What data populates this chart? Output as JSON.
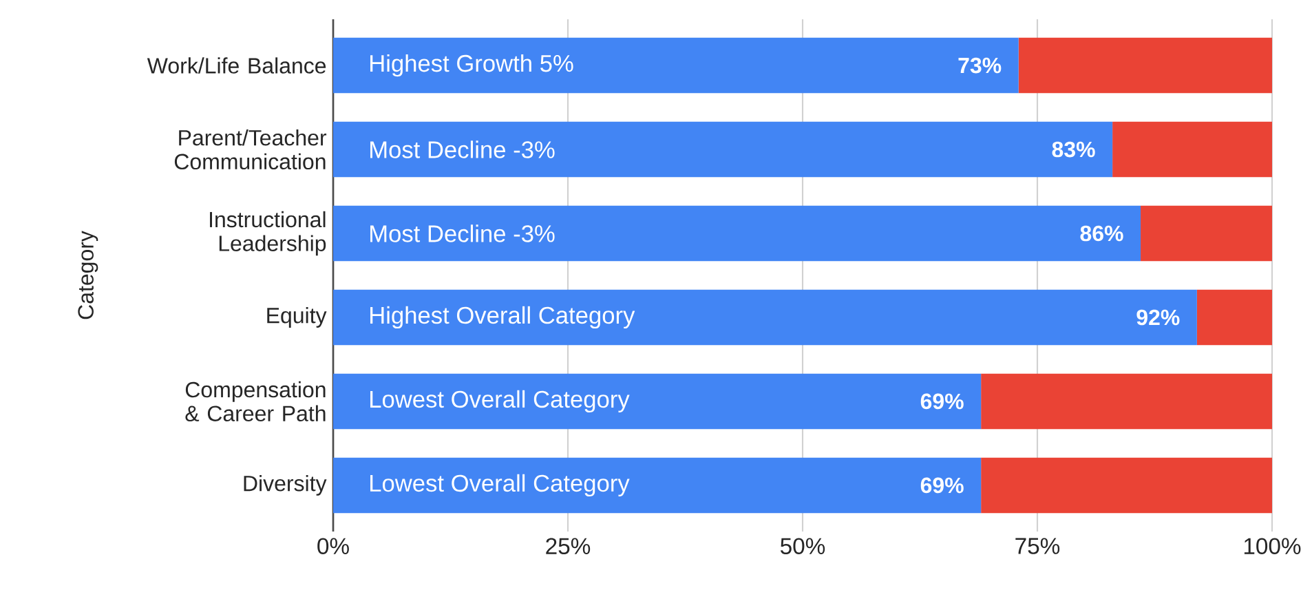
{
  "chart_data": {
    "type": "bar",
    "orientation": "horizontal",
    "stacked": true,
    "grid": "x",
    "ylabel": "Category",
    "categories": [
      "Work/Life Balance",
      "Parent/Teacher Communication",
      "Instructional Leadership",
      "Equity",
      "Compensation & Career Path",
      "Diversity"
    ],
    "series": [
      {
        "color": "#4285f4",
        "values": [
          73,
          83,
          86,
          92,
          69,
          69
        ],
        "value_labels": [
          "73%",
          "83%",
          "86%",
          "92%",
          "69%",
          "69%"
        ]
      },
      {
        "color": "#ea4335",
        "values": [
          27,
          17,
          14,
          8,
          31,
          31
        ]
      }
    ],
    "xlim": [
      0,
      100
    ],
    "xticks": [
      {
        "value": 0,
        "label": "0%"
      },
      {
        "value": 25,
        "label": "25%"
      },
      {
        "value": 50,
        "label": "50%"
      },
      {
        "value": 75,
        "label": "75%"
      },
      {
        "value": 100,
        "label": "100%"
      }
    ],
    "annotations": [
      "Highest Growth 5%",
      "Most Decline -3%",
      "Most Decline -3%",
      "Highest Overall Category",
      "Lowest Overall Category",
      "Lowest Overall Category"
    ]
  }
}
